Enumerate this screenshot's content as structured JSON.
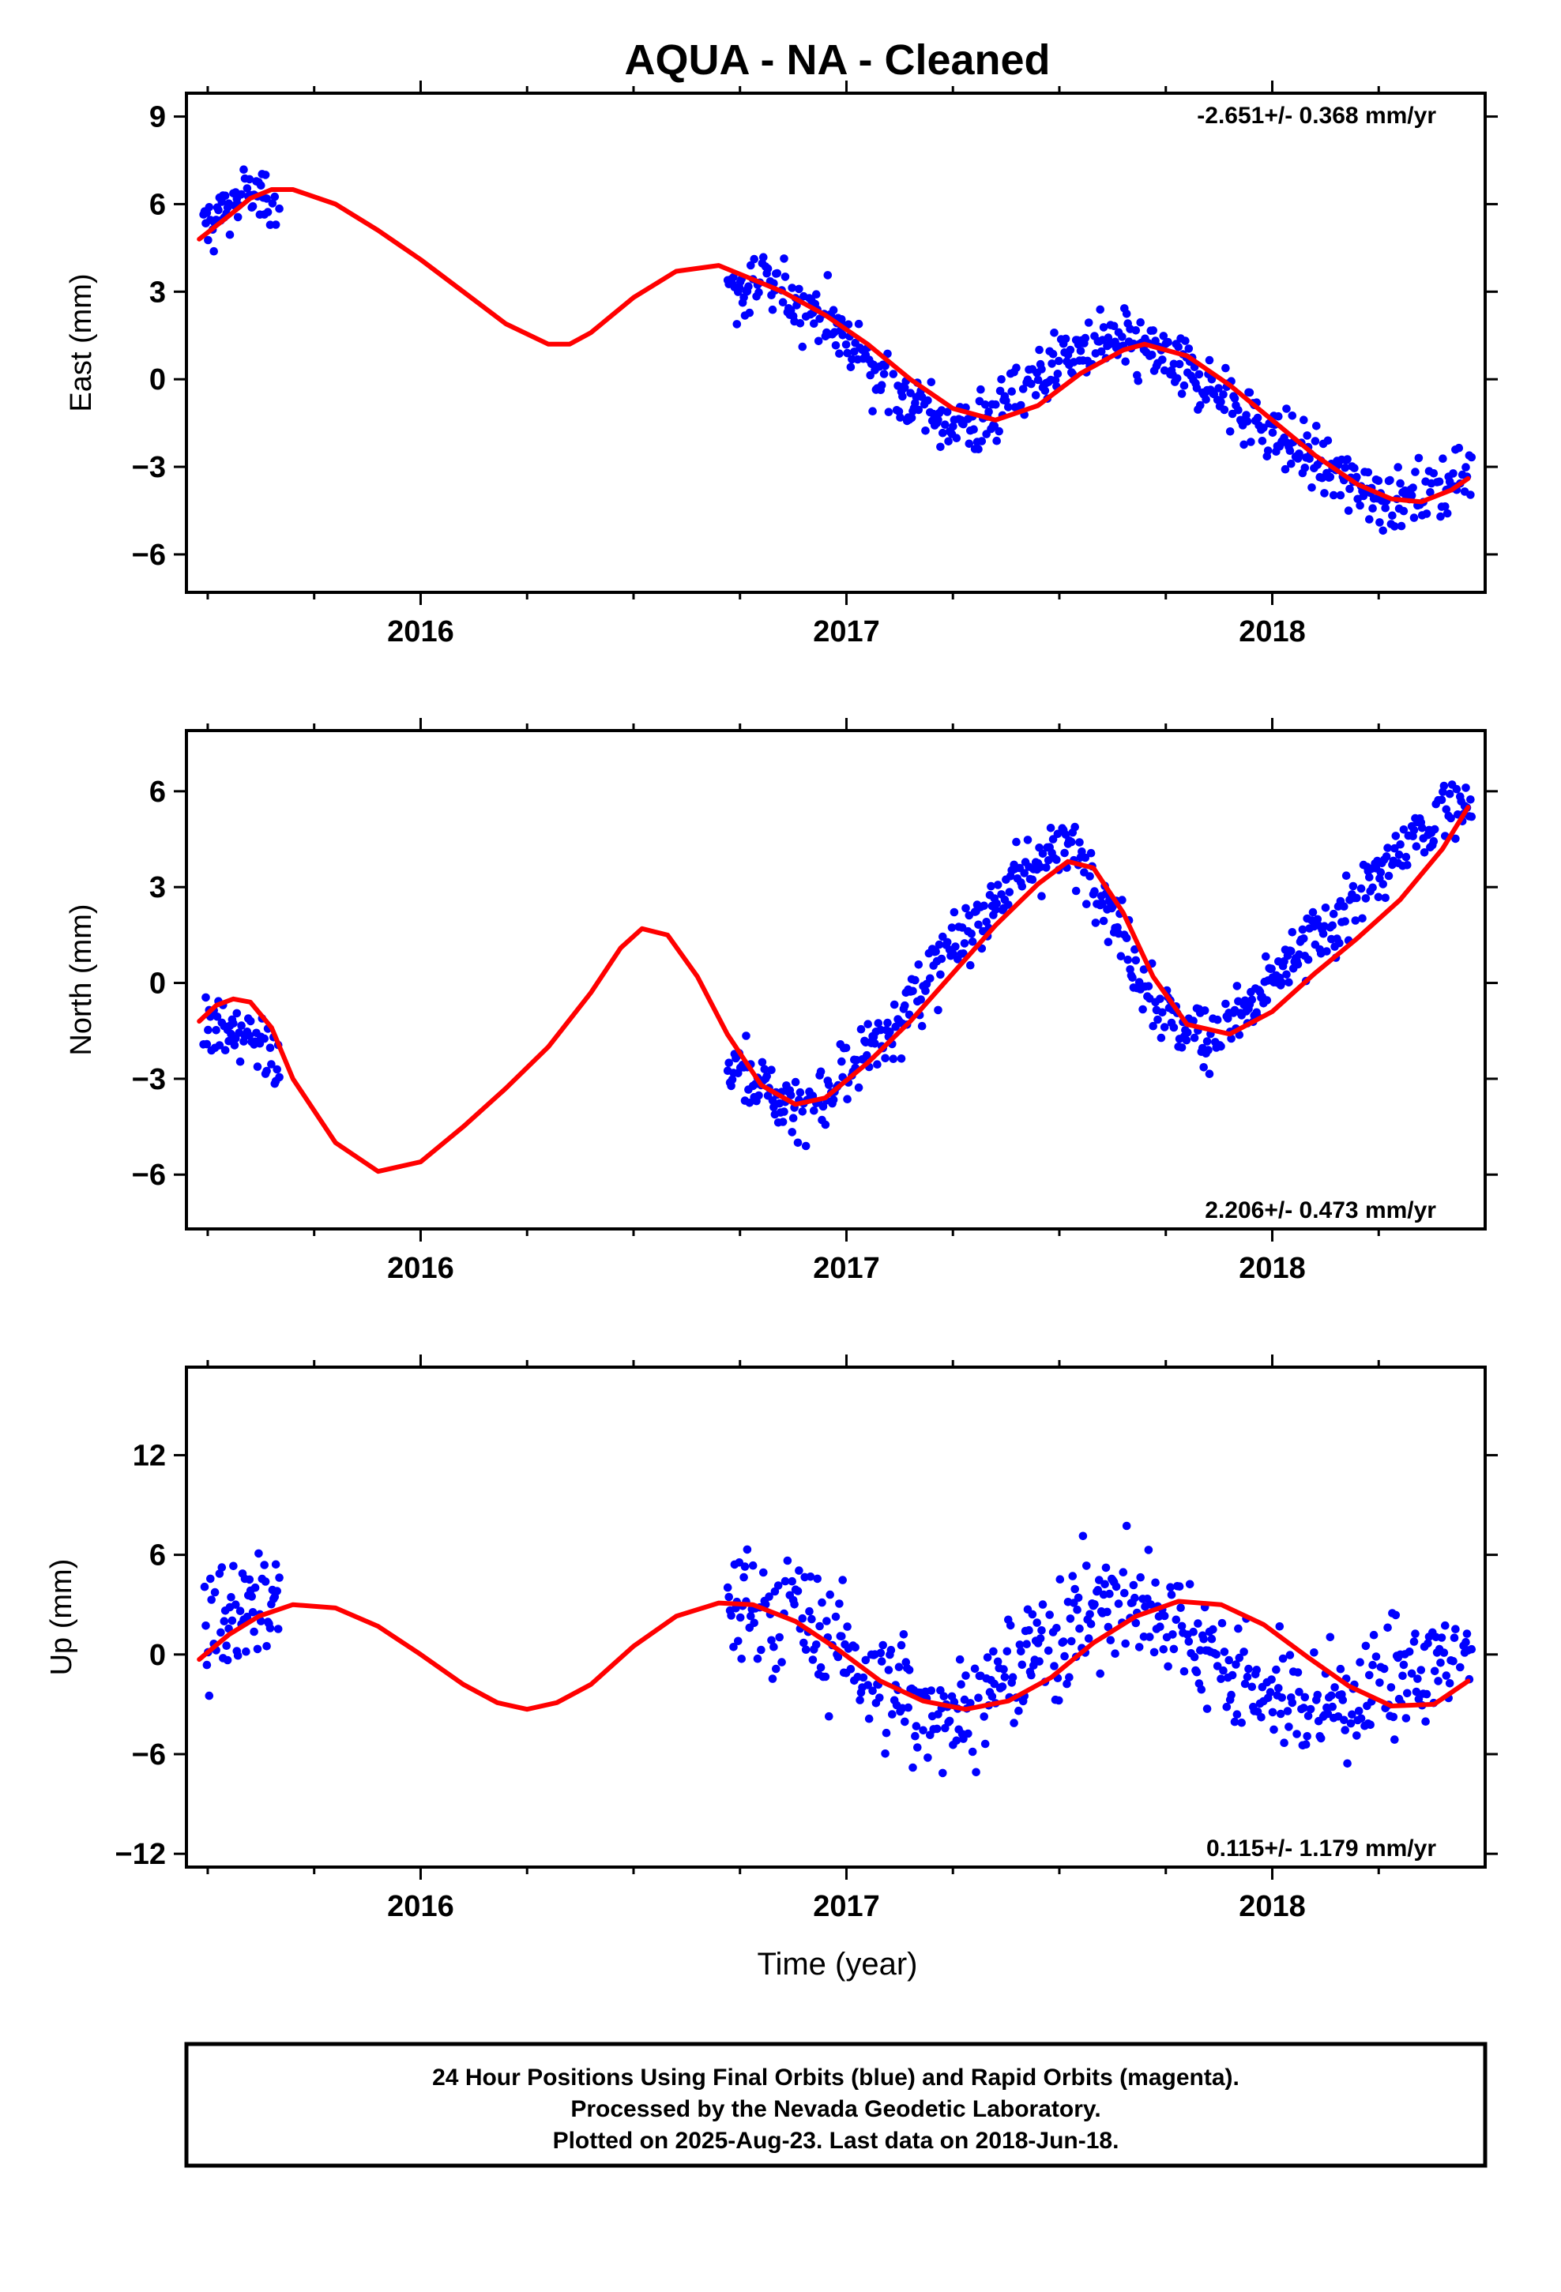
{
  "title": "AQUA  - NA - Cleaned",
  "xlabel": "Time (year)",
  "footer": {
    "line1": "24 Hour Positions Using Final Orbits (blue) and Rapid Orbits (magenta).",
    "line2": "Processed by the Nevada Geodetic Laboratory.",
    "line3": "Plotted on 2025-Aug-23. Last data on 2018-Jun-18."
  },
  "colors": {
    "observed": "#0000ff",
    "model": "#ff0000",
    "frame": "#000000"
  },
  "chart_data": [
    {
      "type": "scatter",
      "ylabel": "East (mm)",
      "rate": "-2.651+/- 0.368 mm/yr",
      "rate_position": "top-right",
      "xlim": [
        2015.45,
        2018.5
      ],
      "ylim": [
        -7.3,
        9.8
      ],
      "xticks": [
        2016,
        2017,
        2018
      ],
      "yticks": [
        9,
        6,
        3,
        0,
        -3,
        -6
      ],
      "data_gap": [
        2015.67,
        2016.72
      ],
      "series": [
        {
          "marker": "dots",
          "x": [
            2015.5,
            2015.55,
            2015.6,
            2015.65,
            2016.75,
            2016.8,
            2016.85,
            2016.9,
            2016.95,
            2017.0,
            2017.05,
            2017.1,
            2017.15,
            2017.2,
            2017.25,
            2017.3,
            2017.35,
            2017.4,
            2017.45,
            2017.5,
            2017.55,
            2017.6,
            2017.65,
            2017.7,
            2017.75,
            2017.8,
            2017.85,
            2017.9,
            2017.95,
            2018.0,
            2018.05,
            2018.1,
            2018.15,
            2018.2,
            2018.25,
            2018.3,
            2018.35,
            2018.4,
            2018.45
          ],
          "y": [
            5.3,
            6.0,
            6.4,
            6.2,
            3.0,
            3.2,
            3.0,
            2.5,
            2.2,
            1.4,
            0.6,
            -0.1,
            -0.8,
            -1.3,
            -1.5,
            -1.6,
            -1.2,
            -0.6,
            0.1,
            0.6,
            1.0,
            1.2,
            1.2,
            1.0,
            0.7,
            0.3,
            -0.2,
            -0.8,
            -1.2,
            -1.8,
            -2.3,
            -2.8,
            -3.2,
            -3.6,
            -3.9,
            -4.1,
            -4.0,
            -3.7,
            -3.3
          ]
        },
        {
          "marker": "line",
          "x": [
            2015.48,
            2015.55,
            2015.6,
            2015.65,
            2015.7,
            2015.8,
            2015.9,
            2016.0,
            2016.1,
            2016.2,
            2016.3,
            2016.35,
            2016.4,
            2016.5,
            2016.6,
            2016.7,
            2016.75,
            2016.85,
            2016.95,
            2017.05,
            2017.15,
            2017.25,
            2017.35,
            2017.45,
            2017.55,
            2017.65,
            2017.7,
            2017.8,
            2017.9,
            2018.0,
            2018.1,
            2018.2,
            2018.28,
            2018.35,
            2018.42,
            2018.46
          ],
          "y": [
            4.8,
            5.6,
            6.2,
            6.5,
            6.5,
            6.0,
            5.1,
            4.1,
            3.0,
            1.9,
            1.2,
            1.2,
            1.6,
            2.8,
            3.7,
            3.9,
            3.6,
            3.0,
            2.2,
            1.2,
            0.0,
            -1.0,
            -1.4,
            -0.9,
            0.2,
            1.0,
            1.2,
            0.8,
            -0.2,
            -1.4,
            -2.6,
            -3.6,
            -4.1,
            -4.2,
            -3.8,
            -3.4
          ]
        }
      ]
    },
    {
      "type": "scatter",
      "ylabel": "North (mm)",
      "rate": "2.206+/- 0.473 mm/yr",
      "rate_position": "bottom-right",
      "xlim": [
        2015.45,
        2018.5
      ],
      "ylim": [
        -7.7,
        7.9
      ],
      "xticks": [
        2016,
        2017,
        2018
      ],
      "yticks": [
        6,
        3,
        0,
        -3,
        -6
      ],
      "data_gap": [
        2015.67,
        2016.72
      ],
      "series": [
        {
          "marker": "dots",
          "x": [
            2015.5,
            2015.55,
            2015.6,
            2015.65,
            2016.75,
            2016.8,
            2016.85,
            2016.9,
            2016.95,
            2017.0,
            2017.05,
            2017.1,
            2017.15,
            2017.2,
            2017.25,
            2017.3,
            2017.35,
            2017.4,
            2017.45,
            2017.5,
            2017.55,
            2017.6,
            2017.65,
            2017.7,
            2017.75,
            2017.8,
            2017.85,
            2017.9,
            2017.95,
            2018.0,
            2018.05,
            2018.1,
            2018.15,
            2018.2,
            2018.25,
            2018.3,
            2018.35,
            2018.4,
            2018.45
          ],
          "y": [
            -1.0,
            -1.3,
            -1.8,
            -2.5,
            -2.6,
            -3.3,
            -3.7,
            -3.9,
            -3.6,
            -2.8,
            -2.0,
            -1.4,
            -0.6,
            0.2,
            1.0,
            1.8,
            2.6,
            3.3,
            3.9,
            4.2,
            4.0,
            3.0,
            1.5,
            0.0,
            -1.0,
            -1.5,
            -1.6,
            -1.3,
            -0.8,
            0.0,
            0.8,
            1.4,
            2.0,
            2.6,
            3.3,
            4.0,
            4.7,
            5.4,
            5.9
          ]
        },
        {
          "marker": "line",
          "x": [
            2015.48,
            2015.52,
            2015.56,
            2015.6,
            2015.65,
            2015.7,
            2015.8,
            2015.9,
            2016.0,
            2016.1,
            2016.2,
            2016.3,
            2016.4,
            2016.47,
            2016.52,
            2016.58,
            2016.65,
            2016.72,
            2016.8,
            2016.88,
            2016.95,
            2017.05,
            2017.15,
            2017.25,
            2017.35,
            2017.45,
            2017.52,
            2017.58,
            2017.65,
            2017.72,
            2017.8,
            2017.9,
            2018.0,
            2018.1,
            2018.2,
            2018.3,
            2018.4,
            2018.46
          ],
          "y": [
            -1.2,
            -0.7,
            -0.5,
            -0.6,
            -1.4,
            -3.0,
            -5.0,
            -5.9,
            -5.6,
            -4.5,
            -3.3,
            -2.0,
            -0.3,
            1.1,
            1.7,
            1.5,
            0.2,
            -1.6,
            -3.2,
            -3.8,
            -3.6,
            -2.5,
            -1.2,
            0.3,
            1.8,
            3.1,
            3.8,
            3.6,
            2.2,
            0.2,
            -1.3,
            -1.6,
            -0.9,
            0.3,
            1.4,
            2.6,
            4.2,
            5.5
          ]
        }
      ]
    },
    {
      "type": "scatter",
      "ylabel": "Up (mm)",
      "rate": "0.115+/- 1.179 mm/yr",
      "rate_position": "bottom-right",
      "xlim": [
        2015.45,
        2018.5
      ],
      "ylim": [
        -12.8,
        17.3
      ],
      "xticks": [
        2016,
        2017,
        2018
      ],
      "yticks": [
        12,
        6,
        0,
        -6,
        -12
      ],
      "data_gap": [
        2015.67,
        2016.72
      ],
      "series": [
        {
          "marker": "dots",
          "x": [
            2015.5,
            2015.55,
            2015.6,
            2015.65,
            2016.75,
            2016.8,
            2016.85,
            2016.9,
            2016.95,
            2017.0,
            2017.05,
            2017.1,
            2017.15,
            2017.2,
            2017.25,
            2017.3,
            2017.35,
            2017.4,
            2017.45,
            2017.5,
            2017.55,
            2017.6,
            2017.65,
            2017.7,
            2017.75,
            2017.8,
            2017.85,
            2017.9,
            2017.95,
            2018.0,
            2018.05,
            2018.1,
            2018.15,
            2018.2,
            2018.25,
            2018.3,
            2018.35,
            2018.4,
            2018.45
          ],
          "y": [
            1.5,
            2.5,
            3.0,
            3.0,
            3.0,
            2.8,
            2.5,
            2.0,
            1.0,
            0.0,
            -1.0,
            -2.0,
            -2.8,
            -3.2,
            -3.3,
            -3.0,
            -2.2,
            -1.0,
            0.3,
            1.5,
            2.5,
            3.0,
            3.2,
            3.0,
            2.5,
            1.5,
            0.3,
            -0.8,
            -1.8,
            -2.5,
            -3.0,
            -3.2,
            -3.0,
            -2.5,
            -2.0,
            -1.5,
            -1.0,
            -0.5,
            0.0
          ]
        },
        {
          "marker": "line",
          "x": [
            2015.48,
            2015.55,
            2015.62,
            2015.7,
            2015.8,
            2015.9,
            2016.0,
            2016.1,
            2016.18,
            2016.25,
            2016.32,
            2016.4,
            2016.5,
            2016.6,
            2016.7,
            2016.78,
            2016.88,
            2016.98,
            2017.08,
            2017.18,
            2017.28,
            2017.38,
            2017.48,
            2017.58,
            2017.68,
            2017.78,
            2017.88,
            2017.98,
            2018.08,
            2018.18,
            2018.28,
            2018.38,
            2018.46
          ],
          "y": [
            -0.3,
            1.2,
            2.3,
            3.0,
            2.8,
            1.7,
            0.0,
            -1.8,
            -2.9,
            -3.3,
            -2.9,
            -1.8,
            0.5,
            2.3,
            3.1,
            3.0,
            2.0,
            0.3,
            -1.6,
            -2.8,
            -3.3,
            -2.8,
            -1.4,
            0.7,
            2.3,
            3.2,
            3.0,
            1.8,
            -0.1,
            -1.9,
            -3.1,
            -3.0,
            -1.6
          ]
        }
      ]
    }
  ]
}
